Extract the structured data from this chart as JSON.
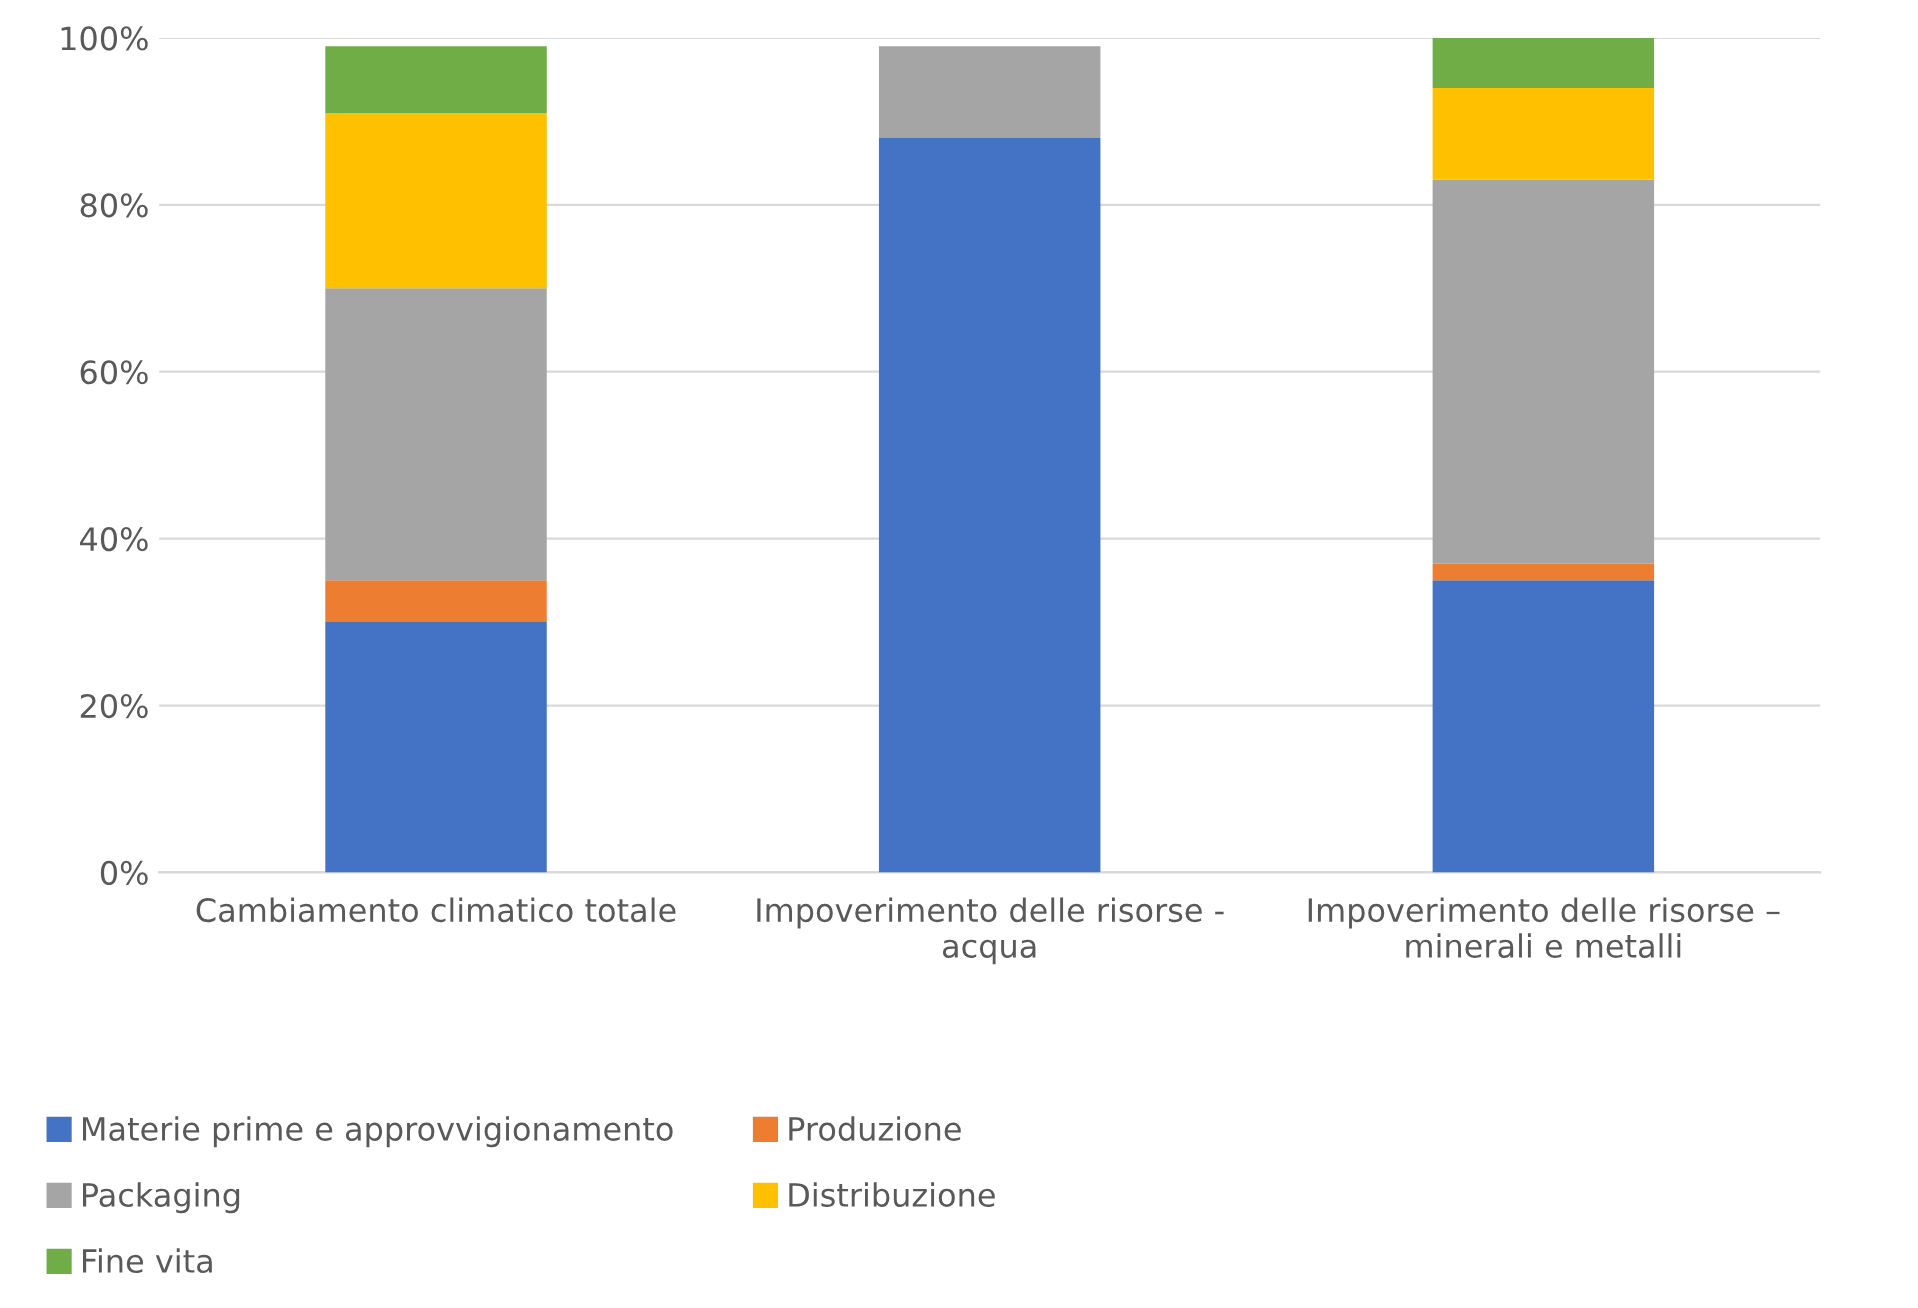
{
  "chart_data": {
    "type": "bar",
    "stacked": true,
    "categories": [
      "Cambiamento climatico totale",
      "Impoverimento delle risorse - acqua",
      "Impoverimento delle risorse – minerali e metalli"
    ],
    "series": [
      {
        "name": "Materie prime e approvvigionamento",
        "color": "#4472c4",
        "values": [
          30,
          88,
          35
        ]
      },
      {
        "name": "Produzione",
        "color": "#ed7d31",
        "values": [
          5,
          0,
          2
        ]
      },
      {
        "name": "Packaging",
        "color": "#a5a5a5",
        "values": [
          35,
          11,
          46
        ]
      },
      {
        "name": "Distribuzione",
        "color": "#ffc000",
        "values": [
          21,
          0,
          11
        ]
      },
      {
        "name": "Fine vita",
        "color": "#70ad47",
        "values": [
          8,
          0,
          6
        ]
      }
    ],
    "ylim": [
      0,
      100
    ],
    "yticks": [
      {
        "value": 0,
        "label": "0%"
      },
      {
        "value": 20,
        "label": "20%"
      },
      {
        "value": 40,
        "label": "40%"
      },
      {
        "value": 60,
        "label": "60%"
      },
      {
        "value": 80,
        "label": "80%"
      },
      {
        "value": 100,
        "label": "100%"
      }
    ],
    "grid": "y",
    "legend": "bottom"
  }
}
